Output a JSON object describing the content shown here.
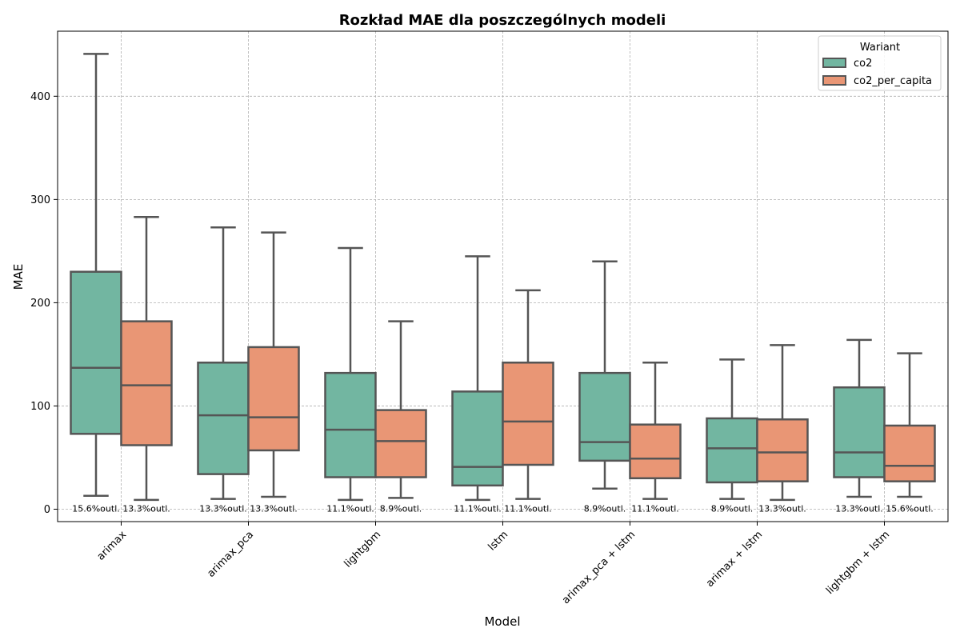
{
  "chart_data": {
    "type": "box",
    "title": "Rozkład MAE dla poszczególnych modeli",
    "xlabel": "Model",
    "ylabel": "MAE",
    "ylim": [
      -12,
      463
    ],
    "yticks": [
      0,
      100,
      200,
      300,
      400
    ],
    "grid": true,
    "legend": {
      "title": "Wariant",
      "placement": "top-right",
      "entries": [
        "co2",
        "co2_per_capita"
      ]
    },
    "categories": [
      "arimax",
      "arimax_pca",
      "lightgbm",
      "lstm",
      "arimax_pca + lstm",
      "arimax + lstm",
      "lightgbm + lstm"
    ],
    "series": [
      {
        "name": "co2",
        "color": "#72b6a1",
        "boxes": [
          {
            "whislo": 13,
            "q1": 73,
            "med": 137,
            "q3": 230,
            "whishi": 441,
            "outliers_label": "15.6%outl."
          },
          {
            "whislo": 10,
            "q1": 34,
            "med": 91,
            "q3": 142,
            "whishi": 273,
            "outliers_label": "13.3%outl."
          },
          {
            "whislo": 9,
            "q1": 31,
            "med": 77,
            "q3": 132,
            "whishi": 253,
            "outliers_label": "11.1%outl."
          },
          {
            "whislo": 9,
            "q1": 23,
            "med": 41,
            "q3": 114,
            "whishi": 245,
            "outliers_label": "11.1%outl."
          },
          {
            "whislo": 20,
            "q1": 47,
            "med": 65,
            "q3": 132,
            "whishi": 240,
            "outliers_label": "8.9%outl."
          },
          {
            "whislo": 10,
            "q1": 26,
            "med": 59,
            "q3": 88,
            "whishi": 145,
            "outliers_label": "8.9%outl."
          },
          {
            "whislo": 12,
            "q1": 31,
            "med": 55,
            "q3": 118,
            "whishi": 164,
            "outliers_label": "13.3%outl."
          }
        ]
      },
      {
        "name": "co2_per_capita",
        "color": "#e99675",
        "boxes": [
          {
            "whislo": 9,
            "q1": 62,
            "med": 120,
            "q3": 182,
            "whishi": 283,
            "outliers_label": "13.3%outl."
          },
          {
            "whislo": 12,
            "q1": 57,
            "med": 89,
            "q3": 157,
            "whishi": 268,
            "outliers_label": "13.3%outl."
          },
          {
            "whislo": 11,
            "q1": 31,
            "med": 66,
            "q3": 96,
            "whishi": 182,
            "outliers_label": "8.9%outl."
          },
          {
            "whislo": 10,
            "q1": 43,
            "med": 85,
            "q3": 142,
            "whishi": 212,
            "outliers_label": "11.1%outl."
          },
          {
            "whislo": 10,
            "q1": 30,
            "med": 49,
            "q3": 82,
            "whishi": 142,
            "outliers_label": "11.1%outl."
          },
          {
            "whislo": 9,
            "q1": 27,
            "med": 55,
            "q3": 87,
            "whishi": 159,
            "outliers_label": "13.3%outl."
          },
          {
            "whislo": 12,
            "q1": 27,
            "med": 42,
            "q3": 81,
            "whishi": 151,
            "outliers_label": "15.6%outl."
          }
        ]
      }
    ]
  }
}
